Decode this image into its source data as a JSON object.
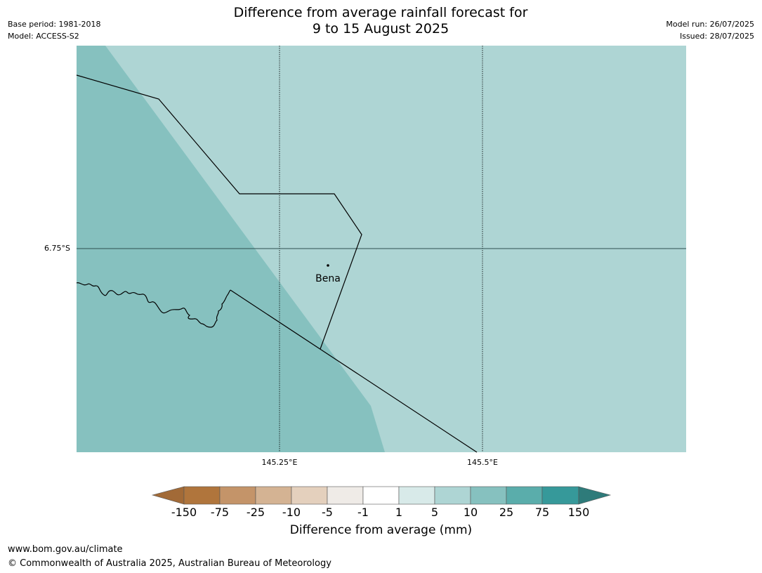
{
  "title": {
    "line1": "Difference from average rainfall forecast for",
    "line2": "9 to 15 August 2025"
  },
  "meta_left": {
    "base_period": "Base period: 1981-2018",
    "model": "Model: ACCESS-S2"
  },
  "meta_right": {
    "model_run": "Model run: 26/07/2025",
    "issued": "Issued: 28/07/2025"
  },
  "map": {
    "place_label": "Bena",
    "lat_label": "6.75°S",
    "lon_labels": [
      "145.25°E",
      "145.5°E"
    ],
    "colors": {
      "region_5_to_10": "#aed5d4",
      "region_10_to_25": "#86c1bf",
      "border": "#000000",
      "gridline": "#000000"
    }
  },
  "colorbar": {
    "title": "Difference from average (mm)",
    "ticks": [
      "-150",
      "-75",
      "-25",
      "-10",
      "-5",
      "-1",
      "1",
      "5",
      "10",
      "25",
      "75",
      "150"
    ],
    "colors": [
      "#a26a37",
      "#b0753c",
      "#c49469",
      "#d4b393",
      "#e4d0bd",
      "#efebe7",
      "#ffffff",
      "#d8eae9",
      "#aed5d4",
      "#86c1bf",
      "#5aadab",
      "#36999a",
      "#2e7b7a"
    ]
  },
  "footer": {
    "url": "www.bom.gov.au/climate",
    "copyright": "© Commonwealth of Australia 2025, Australian Bureau of Meteorology"
  }
}
